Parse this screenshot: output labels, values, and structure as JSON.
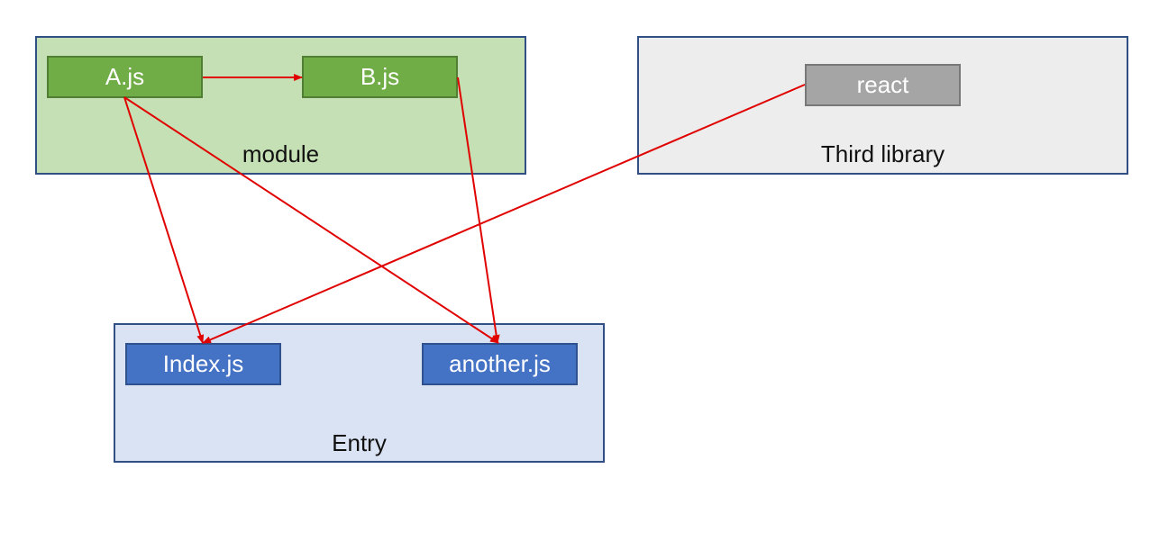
{
  "groups": {
    "module": {
      "label": "module"
    },
    "third_library": {
      "label": "Third library"
    },
    "entry": {
      "label": "Entry"
    }
  },
  "nodes": {
    "a": "A.js",
    "b": "B.js",
    "react": "react",
    "index": "Index.js",
    "another": "another.js"
  },
  "edges": [
    {
      "from": "A.js",
      "to": "B.js"
    },
    {
      "from": "A.js",
      "to": "Index.js"
    },
    {
      "from": "A.js",
      "to": "another.js"
    },
    {
      "from": "B.js",
      "to": "another.js"
    },
    {
      "from": "react",
      "to": "Index.js"
    }
  ],
  "colors": {
    "arrow": "#e00000",
    "module_fill": "#c5e0b4",
    "third_fill": "#ededed",
    "entry_fill": "#dae3f3"
  }
}
